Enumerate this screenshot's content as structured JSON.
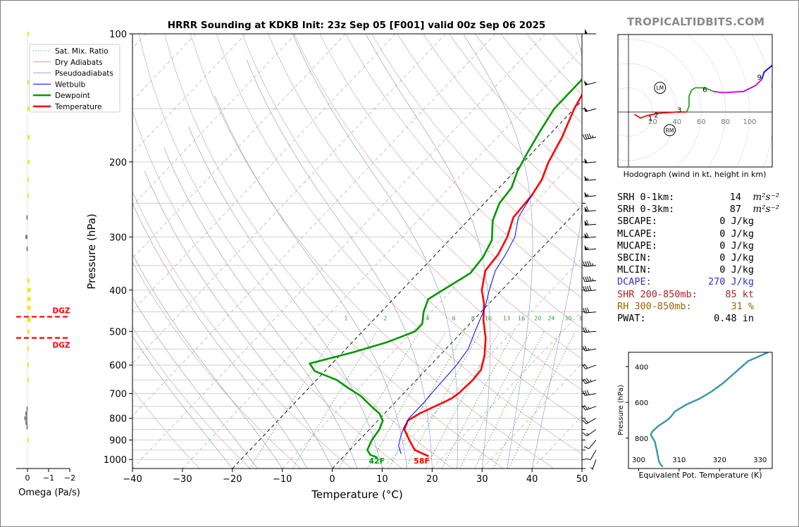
{
  "title": "HRRR Sounding at KDKB Init: 23z Sep 05 [F001] valid 00z Sep 06 2025",
  "brand": "TROPICALTIDBITS.COM",
  "chart_data": [
    {
      "type": "line",
      "name": "skewt",
      "xlabel": "Temperature (°C)",
      "ylabel": "Pressure (hPa)",
      "xlim": [
        -40,
        50
      ],
      "ylim": [
        1050,
        100
      ],
      "log_y": true,
      "grid": true,
      "x_ticks": [
        "−40",
        "−30",
        "−20",
        "−10",
        "0",
        "10",
        "20",
        "30",
        "40",
        "50"
      ],
      "x_tick_values": [
        -40,
        -30,
        -20,
        -10,
        0,
        10,
        20,
        30,
        40,
        50
      ],
      "y_ticks": [
        "100",
        "200",
        "300",
        "400",
        "500",
        "600",
        "700",
        "800",
        "900",
        "1000"
      ],
      "y_tick_values": [
        100,
        200,
        300,
        400,
        500,
        600,
        700,
        800,
        900,
        1000
      ],
      "legend_position": "top-left",
      "legend": [
        {
          "label": "Sat. Mix. Ratio",
          "color": "#2ca02c",
          "style": "dotted"
        },
        {
          "label": "Dry Adiabats",
          "color": "#c98b8b",
          "style": "solid"
        },
        {
          "label": "Pseudoadiabats",
          "color": "#8a8acc",
          "style": "solid"
        },
        {
          "label": "Wetbulb",
          "color": "#0000ff",
          "style": "solid"
        },
        {
          "label": "Dewpoint",
          "color": "#009900",
          "style": "solid"
        },
        {
          "label": "Temperature",
          "color": "#ff0000",
          "style": "solid"
        }
      ],
      "series": [
        {
          "name": "Temperature",
          "color": "#ff0000",
          "points": [
            [
              17,
              983
            ],
            [
              13,
              950
            ],
            [
              10,
              900
            ],
            [
              7,
              850
            ],
            [
              6,
              810
            ],
            [
              7,
              780
            ],
            [
              9,
              745
            ],
            [
              10.5,
              720
            ],
            [
              11,
              700
            ],
            [
              11.3,
              650
            ],
            [
              11,
              615
            ],
            [
              9,
              570
            ],
            [
              6,
              520
            ],
            [
              2,
              470
            ],
            [
              -1,
              430
            ],
            [
              -4,
              400
            ],
            [
              -7,
              360
            ],
            [
              -7.5,
              330
            ],
            [
              -9,
              300
            ],
            [
              -11.5,
              270
            ],
            [
              -12,
              240
            ],
            [
              -13,
              220
            ],
            [
              -15,
              200
            ],
            [
              -17,
              175
            ],
            [
              -20,
              150
            ],
            [
              -22,
              130
            ],
            [
              -24,
              115
            ],
            [
              -27,
              100
            ]
          ]
        },
        {
          "name": "Wetbulb",
          "color": "#0000ff",
          "points": [
            [
              11,
              970
            ],
            [
              9,
              930
            ],
            [
              7.5,
              880
            ],
            [
              6.5,
              840
            ],
            [
              5.8,
              800
            ],
            [
              5.8,
              770
            ],
            [
              5.8,
              730
            ],
            [
              5.6,
              700
            ],
            [
              5.4,
              650
            ],
            [
              5.2,
              600
            ],
            [
              4.5,
              550
            ],
            [
              2.5,
              500
            ],
            [
              0,
              440
            ],
            [
              -2.5,
              400
            ],
            [
              -5,
              360
            ],
            [
              -6,
              330
            ],
            [
              -7.5,
              300
            ],
            [
              -10.5,
              270
            ],
            [
              -12,
              240
            ]
          ]
        },
        {
          "name": "Dewpoint",
          "color": "#009900",
          "points": [
            [
              7,
              990
            ],
            [
              5,
              975
            ],
            [
              3.5,
              950
            ],
            [
              2.5,
              900
            ],
            [
              2,
              850
            ],
            [
              1,
              810
            ],
            [
              -1,
              780
            ],
            [
              -3,
              760
            ],
            [
              -6,
              730
            ],
            [
              -8,
              710
            ],
            [
              -12,
              680
            ],
            [
              -16,
              650
            ],
            [
              -22,
              620
            ],
            [
              -24.5,
              595
            ],
            [
              -18,
              560
            ],
            [
              -13,
              530
            ],
            [
              -9.5,
              500
            ],
            [
              -9.5,
              480
            ],
            [
              -11.5,
              450
            ],
            [
              -13,
              420
            ],
            [
              -11.5,
              395
            ],
            [
              -9.5,
              365
            ],
            [
              -10,
              335
            ],
            [
              -11.5,
              305
            ],
            [
              -15,
              275
            ],
            [
              -17,
              250
            ],
            [
              -17.5,
              230
            ],
            [
              -19.5,
              210
            ],
            [
              -21,
              190
            ],
            [
              -22.5,
              170
            ],
            [
              -24,
              150
            ],
            [
              -24,
              125
            ],
            [
              -21,
              110
            ],
            [
              -19,
              100
            ]
          ]
        }
      ],
      "surface_dewpoint_label": "42F",
      "surface_temperature_label": "58F",
      "dgz_label": "DGZ",
      "dgz_bounds_hpa": [
        462,
        518
      ],
      "mixing_ratio_labels": [
        "1",
        "2",
        "4",
        "6",
        "8",
        "10",
        "13",
        "16",
        "20",
        "24",
        "30",
        "36"
      ],
      "mixing_ratio_values": [
        1,
        2,
        4,
        6,
        8,
        10,
        13,
        16,
        20,
        24,
        30,
        36
      ],
      "wind_barbs_kt": [
        {
          "p": 100,
          "dir": 270,
          "spd": 50
        },
        {
          "p": 130,
          "dir": 255,
          "spd": 50
        },
        {
          "p": 150,
          "dir": 255,
          "spd": 50
        },
        {
          "p": 175,
          "dir": 260,
          "spd": 45
        },
        {
          "p": 200,
          "dir": 265,
          "spd": 50
        },
        {
          "p": 220,
          "dir": 265,
          "spd": 55
        },
        {
          "p": 240,
          "dir": 265,
          "spd": 55
        },
        {
          "p": 260,
          "dir": 265,
          "spd": 60
        },
        {
          "p": 280,
          "dir": 265,
          "spd": 60
        },
        {
          "p": 300,
          "dir": 265,
          "spd": 60
        },
        {
          "p": 320,
          "dir": 265,
          "spd": 55
        },
        {
          "p": 350,
          "dir": 265,
          "spd": 45
        },
        {
          "p": 380,
          "dir": 265,
          "spd": 45
        },
        {
          "p": 400,
          "dir": 265,
          "spd": 40
        },
        {
          "p": 450,
          "dir": 265,
          "spd": 30
        },
        {
          "p": 500,
          "dir": 265,
          "spd": 25
        },
        {
          "p": 550,
          "dir": 260,
          "spd": 25
        },
        {
          "p": 600,
          "dir": 250,
          "spd": 20
        },
        {
          "p": 650,
          "dir": 250,
          "spd": 35
        },
        {
          "p": 700,
          "dir": 260,
          "spd": 30
        },
        {
          "p": 750,
          "dir": 250,
          "spd": 25
        },
        {
          "p": 800,
          "dir": 240,
          "spd": 20
        },
        {
          "p": 850,
          "dir": 235,
          "spd": 15
        },
        {
          "p": 900,
          "dir": 220,
          "spd": 10
        },
        {
          "p": 950,
          "dir": 210,
          "spd": 10
        },
        {
          "p": 1000,
          "dir": 200,
          "spd": 5
        }
      ]
    },
    {
      "type": "bar",
      "name": "omega",
      "xlabel": "Omega (Pa/s)",
      "xlim": [
        0.2,
        -2.5
      ],
      "x_ticks": [
        "0",
        "−1",
        "−2"
      ],
      "x_tick_values": [
        0,
        -1,
        -2
      ],
      "series": [
        {
          "name": "yellow",
          "color": "#ffe11a",
          "bars": [
            [
              100,
              -0.05
            ],
            [
              130,
              -0.05
            ],
            [
              150,
              -0.1
            ],
            [
              175,
              -0.1
            ],
            [
              200,
              -0.1
            ],
            [
              220,
              -0.05
            ],
            [
              240,
              -0.05
            ],
            [
              380,
              -0.1
            ],
            [
              400,
              -0.15
            ],
            [
              420,
              -0.15
            ],
            [
              440,
              -0.15
            ],
            [
              470,
              -0.15
            ],
            [
              500,
              -0.1
            ],
            [
              550,
              -0.05
            ],
            [
              600,
              -0.05
            ],
            [
              650,
              -0.02
            ],
            [
              900,
              -0.02
            ]
          ]
        },
        {
          "name": "gray",
          "color": "#808080",
          "bars": [
            [
              270,
              0.05
            ],
            [
              300,
              0.1
            ],
            [
              320,
              0.05
            ],
            [
              760,
              0.05
            ],
            [
              780,
              0.1
            ],
            [
              800,
              0.15
            ],
            [
              820,
              0.1
            ],
            [
              840,
              0.05
            ]
          ]
        }
      ]
    },
    {
      "type": "line",
      "name": "hodograph",
      "xlabel": "Hodograph (wind in kt, height in km)",
      "x_ticks": [
        "20",
        "40",
        "60",
        "80",
        "100"
      ],
      "x_tick_values": [
        20,
        40,
        60,
        80,
        100
      ],
      "xlim": [
        -10,
        120
      ],
      "ylim": [
        -45,
        60
      ],
      "series": [
        {
          "name": "0-3km",
          "color": "#ff0000",
          "points": [
            [
              5,
              -2
            ],
            [
              10,
              -5
            ],
            [
              15,
              -3
            ],
            [
              25,
              -1
            ],
            [
              40,
              0
            ],
            [
              48,
              0
            ]
          ]
        },
        {
          "name": "3-6km",
          "color": "#2ca02c",
          "points": [
            [
              48,
              0
            ],
            [
              50,
              5
            ],
            [
              50,
              13
            ],
            [
              52,
              18
            ],
            [
              55,
              20
            ],
            [
              63,
              20
            ],
            [
              70,
              17
            ]
          ]
        },
        {
          "name": "6-9km",
          "color": "#cc00cc",
          "points": [
            [
              70,
              17
            ],
            [
              78,
              16
            ],
            [
              95,
              17
            ],
            [
              105,
              22
            ],
            [
              110,
              27
            ]
          ]
        },
        {
          "name": "9-12km",
          "color": "#0000ff",
          "points": [
            [
              110,
              27
            ],
            [
              112,
              33
            ],
            [
              118,
              38
            ],
            [
              121,
              40
            ]
          ]
        }
      ],
      "height_labels": [
        {
          "km": "1",
          "u": 18,
          "v": -5
        },
        {
          "km": "2",
          "u": 23,
          "v": -2
        },
        {
          "km": "3",
          "u": 42,
          "v": 2
        },
        {
          "km": "6",
          "u": 63,
          "v": 19
        },
        {
          "km": "9",
          "u": 108,
          "v": 29
        }
      ],
      "storm_motion": [
        {
          "label": "LM",
          "u": 26,
          "v": 20
        },
        {
          "label": "RM",
          "u": 34,
          "v": -15
        }
      ]
    },
    {
      "type": "line",
      "name": "theta-e",
      "xlabel": "Equivalent Pot. Temperature (K)",
      "ylabel": "Pressure (hPa)",
      "xlim": [
        297.5,
        333
      ],
      "ylim": [
        970,
        320
      ],
      "x_ticks": [
        "300",
        "310",
        "320",
        "330"
      ],
      "x_tick_values": [
        300,
        310,
        320,
        330
      ],
      "y_ticks": [
        "400",
        "600",
        "800"
      ],
      "y_tick_values": [
        400,
        600,
        800
      ],
      "series": [
        {
          "name": "theta-e",
          "color": "#3399aa",
          "points": [
            [
              306,
              960
            ],
            [
              305.5,
              950
            ],
            [
              305,
              930
            ],
            [
              304.5,
              870
            ],
            [
              304,
              820
            ],
            [
              303,
              780
            ],
            [
              303.5,
              760
            ],
            [
              305,
              730
            ],
            [
              307,
              700
            ],
            [
              308,
              680
            ],
            [
              309,
              650
            ],
            [
              312,
              610
            ],
            [
              315,
              580
            ],
            [
              318,
              540
            ],
            [
              321,
              490
            ],
            [
              323,
              450
            ],
            [
              325,
              410
            ],
            [
              326,
              390
            ],
            [
              327,
              370
            ],
            [
              330,
              340
            ],
            [
              332,
              320
            ]
          ]
        }
      ]
    }
  ],
  "params": [
    {
      "label": "SRH 0-1km:",
      "value": "14",
      "unit": "m²s⁻²",
      "color": "#000000"
    },
    {
      "label": "SRH 0-3km:",
      "value": "87",
      "unit": "m²s⁻²",
      "color": "#000000"
    },
    {
      "label": "SBCAPE:",
      "value": "0 J/kg",
      "unit": "",
      "color": "#000000"
    },
    {
      "label": "MLCAPE:",
      "value": "0 J/kg",
      "unit": "",
      "color": "#000000"
    },
    {
      "label": "MUCAPE:",
      "value": "0 J/kg",
      "unit": "",
      "color": "#000000"
    },
    {
      "label": "SBCIN:",
      "value": "0 J/kg",
      "unit": "",
      "color": "#000000"
    },
    {
      "label": "MLCIN:",
      "value": "0 J/kg",
      "unit": "",
      "color": "#000000"
    },
    {
      "label": "DCAPE:",
      "value": "270 J/kg",
      "unit": "",
      "color": "#3333cc"
    },
    {
      "label": "SHR 200-850mb:",
      "value": "85 kt",
      "unit": "",
      "color": "#aa2222"
    },
    {
      "label": "RH 300-850mb:",
      "value": "31 %",
      "unit": "",
      "color": "#996600"
    },
    {
      "label": "PWAT:",
      "value": "0.48 in",
      "unit": "",
      "color": "#000000"
    }
  ]
}
